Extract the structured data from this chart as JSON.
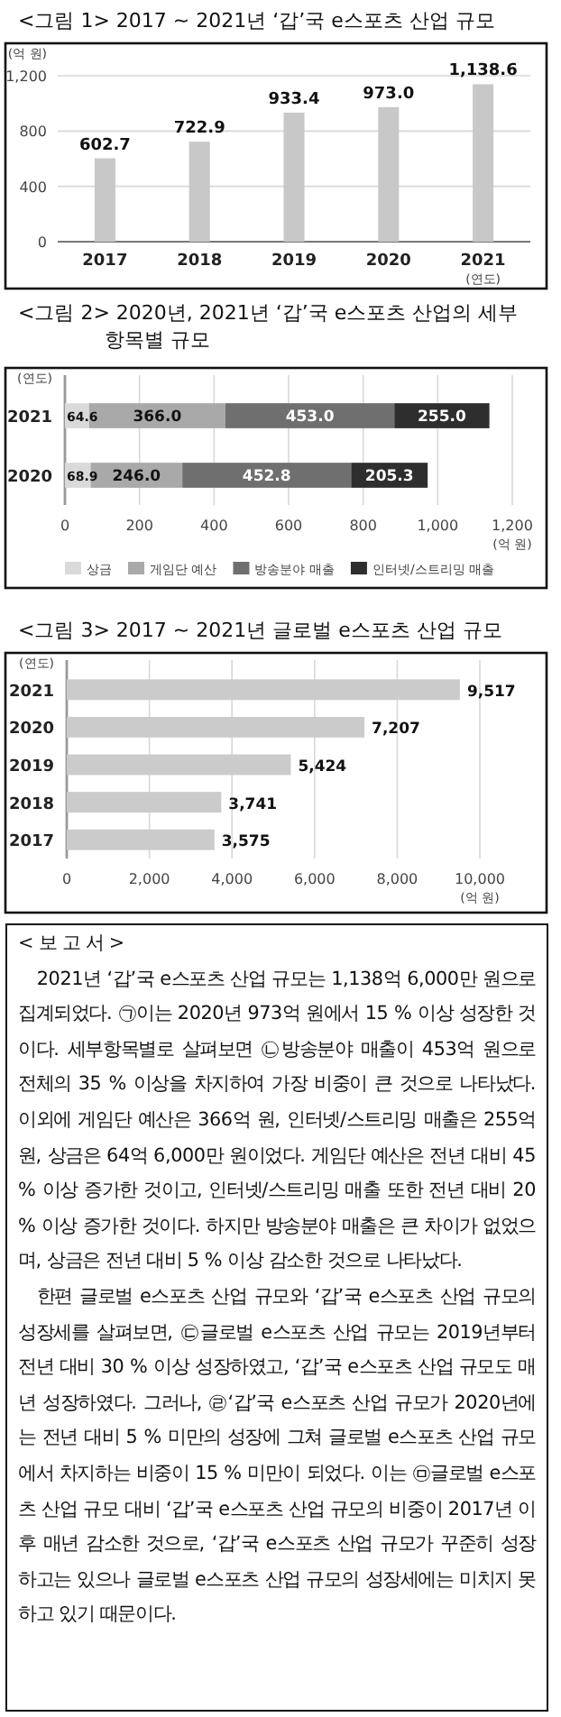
{
  "chart_data": [
    {
      "type": "bar",
      "title": "<그림 1> 2017 ~ 2021년 ‘갑’국 e스포츠 산업 규모",
      "ylabel": "(억 원)",
      "xlabel": "(연도)",
      "categories": [
        "2017",
        "2018",
        "2019",
        "2020",
        "2021"
      ],
      "values": [
        602.7,
        722.9,
        933.4,
        973.0,
        1138.6
      ],
      "value_labels": [
        "602.7",
        "722.9",
        "933.4",
        "973.0",
        "1,138.6"
      ],
      "color": "#c8c8c8",
      "ylim": [
        0,
        1200
      ],
      "yticks": [
        0,
        400,
        800,
        {
          "value": 1200,
          "label": "1,200"
        }
      ],
      "grid": "y"
    },
    {
      "type": "bar",
      "title": "<그림 2> 2020년, 2021년 ‘갑’국 e스포츠 산업의 세부 항목별 규모",
      "ylabel": "(연도)",
      "xlabel": "(억 원)",
      "orientation": "horizontal",
      "stacked": true,
      "categories": [
        "2021",
        "2020"
      ],
      "series": [
        {
          "name": "상금",
          "color": "#dadada",
          "values": [
            64.6,
            68.9
          ],
          "value_labels": [
            "64.6",
            "68.9"
          ]
        },
        {
          "name": "게임단 예산",
          "color": "#a9a9a9",
          "values": [
            366.0,
            246.0
          ],
          "value_labels": [
            "366.0",
            "246.0"
          ]
        },
        {
          "name": "방송분야 매출",
          "color": "#6f6f6f",
          "values": [
            453.0,
            452.8
          ],
          "value_labels": [
            "453.0",
            "452.8"
          ]
        },
        {
          "name": "인터넷/스트리밍 매출",
          "color": "#2e2e2e",
          "values": [
            255.0,
            205.3
          ],
          "value_labels": [
            "255.0",
            "205.3"
          ]
        }
      ],
      "xlim": [
        0,
        1200
      ],
      "xticks": [
        0,
        200,
        400,
        600,
        800,
        {
          "value": 1000,
          "label": "1,000"
        },
        {
          "value": 1200,
          "label": "1,200"
        }
      ],
      "grid": "x",
      "legend": "bottom"
    },
    {
      "type": "bar",
      "title": "<그림 3> 2017 ~ 2021년 글로벌 e스포츠 산업 규모",
      "ylabel": "(연도)",
      "xlabel": "(억 원)",
      "orientation": "horizontal",
      "categories": [
        "2021",
        "2020",
        "2019",
        "2018",
        "2017"
      ],
      "values": [
        9517,
        7207,
        5424,
        3741,
        3575
      ],
      "value_labels": [
        "9,517",
        "7,207",
        "5,424",
        "3,741",
        "3,575"
      ],
      "color": "#cbcbcb",
      "xlim": [
        0,
        10000
      ],
      "xticks": [
        0,
        {
          "value": 2000,
          "label": "2,000"
        },
        {
          "value": 4000,
          "label": "4,000"
        },
        {
          "value": 6000,
          "label": "6,000"
        },
        {
          "value": 8000,
          "label": "8,000"
        },
        {
          "value": 10000,
          "label": "10,000"
        }
      ],
      "grid": "x"
    },
    {
      "type": "other",
      "title": "< 보 고 서 >",
      "annotations": [
        "2021년 ‘갑’국 e스포츠 산업 규모는 1,138억 6,000만 원으로 집계되었다. ㉠이는 2020년 973억 원에서 15 % 이상 성장한 것이다. 세부항목별로 살펴보면 ㉡방송분야 매출이 453억 원으로 전체의 35 % 이상을 차지하여 가장 비중이 큰 것으로 나타났다. 이외에 게임단 예산은 366억 원, 인터넷/스트리밍 매출은 255억 원, 상금은 64억 6,000만 원이었다. 게임단 예산은 전년 대비 45 % 이상 증가한 것이고, 인터넷/스트리밍 매출 또한 전년 대비 20 % 이상 증가한 것이다. 하지만 방송분야 매출은 큰 차이가 없었으며, 상금은 전년 대비 5 % 이상 감소한 것으로 나타났다.",
        "한편 글로벌 e스포츠 산업 규모와 ‘갑’국 e스포츠 산업 규모의 성장세를 살펴보면, ㉢글로벌 e스포츠 산업 규모는 2019년부터 전년 대비 30 % 이상 성장하였고, ‘갑’국 e스포츠 산업 규모도 매년 성장하였다. 그러나, ㉣‘갑’국 e스포츠 산업 규모가 2020년에는 전년 대비 5 % 미만의 성장에 그쳐 글로벌 e스포츠 산업 규모에서 차지하는 비중이 15 % 미만이 되었다. 이는 ㉤글로벌 e스포츠 산업 규모 대비 ‘갑’국 e스포츠 산업 규모의 비중이 2017년 이후 매년 감소한 것으로, ‘갑’국 e스포츠 산업 규모가 꾸준히 성장하고는 있으나 글로벌 e스포츠 산업 규모의 성장세에는 미치지 못하고 있기 때문이다."
      ]
    }
  ]
}
